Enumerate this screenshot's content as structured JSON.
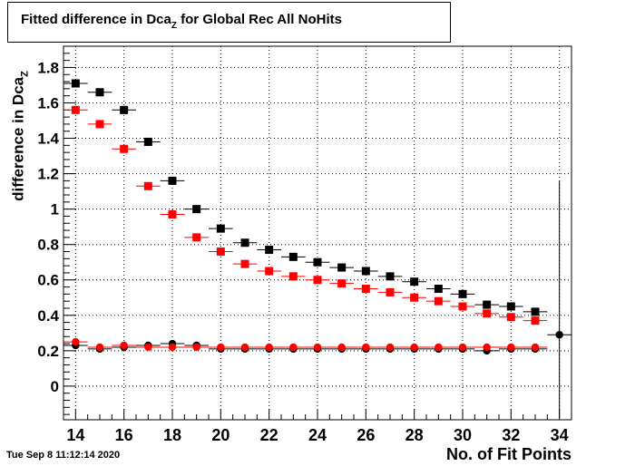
{
  "chart_data": {
    "type": "scatter",
    "title_main": "Fitted difference in Dca",
    "title_sub": "Z",
    "title_tail": " for Global Rec All NoHits",
    "xlabel": "No. of Fit Points",
    "ylabel_main": "difference in Dca",
    "ylabel_sub": "Z",
    "xlim": [
      13.5,
      34.5
    ],
    "ylim": [
      -0.19,
      1.92
    ],
    "x_ticks": [
      14,
      16,
      18,
      20,
      22,
      24,
      26,
      28,
      30,
      32,
      34
    ],
    "y_ticks": [
      0,
      0.2,
      0.4,
      0.6,
      0.8,
      1,
      1.2,
      1.4,
      1.6,
      1.8
    ],
    "y_tick_labels": [
      "0",
      "0.2",
      "0.4",
      "0.6",
      "0.8",
      "1",
      "1.2",
      "1.4",
      "1.6",
      "1.8"
    ],
    "grid": true,
    "series": [
      {
        "marker": "square",
        "color": "#000000",
        "x": [
          14,
          15,
          16,
          17,
          18,
          19,
          20,
          21,
          22,
          23,
          24,
          25,
          26,
          27,
          28,
          29,
          30,
          31,
          32,
          33
        ],
        "y": [
          1.71,
          1.66,
          1.56,
          1.38,
          1.16,
          1.0,
          0.89,
          0.81,
          0.77,
          0.73,
          0.7,
          0.67,
          0.65,
          0.62,
          0.59,
          0.55,
          0.52,
          0.46,
          0.45,
          0.42
        ]
      },
      {
        "marker": "square",
        "color": "#ff0000",
        "x": [
          14,
          15,
          16,
          17,
          18,
          19,
          20,
          21,
          22,
          23,
          24,
          25,
          26,
          27,
          28,
          29,
          30,
          31,
          32,
          33
        ],
        "y": [
          1.56,
          1.48,
          1.34,
          1.13,
          0.97,
          0.84,
          0.76,
          0.69,
          0.65,
          0.62,
          0.6,
          0.58,
          0.55,
          0.53,
          0.5,
          0.48,
          0.45,
          0.41,
          0.39,
          0.37
        ]
      },
      {
        "marker": "circle",
        "color": "#000000",
        "x": [
          14,
          15,
          16,
          17,
          18,
          19,
          20,
          21,
          22,
          23,
          24,
          25,
          26,
          27,
          28,
          29,
          30,
          31,
          32,
          33,
          34
        ],
        "y": [
          0.23,
          0.21,
          0.22,
          0.23,
          0.24,
          0.23,
          0.21,
          0.21,
          0.21,
          0.21,
          0.21,
          0.21,
          0.21,
          0.21,
          0.21,
          0.21,
          0.21,
          0.2,
          0.21,
          0.21,
          0.29
        ],
        "yerr_high_last": 1.16,
        "yerr_low_last": -0.18
      },
      {
        "marker": "circle",
        "color": "#ff0000",
        "x": [
          14,
          15,
          16,
          17,
          18,
          19,
          20,
          21,
          22,
          23,
          24,
          25,
          26,
          27,
          28,
          29,
          30,
          31,
          32,
          33
        ],
        "y": [
          0.25,
          0.22,
          0.23,
          0.22,
          0.22,
          0.22,
          0.22,
          0.22,
          0.22,
          0.22,
          0.22,
          0.22,
          0.22,
          0.22,
          0.22,
          0.22,
          0.22,
          0.22,
          0.22,
          0.22
        ]
      }
    ]
  },
  "timestamp": "Tue Sep  8 11:12:14 2020"
}
